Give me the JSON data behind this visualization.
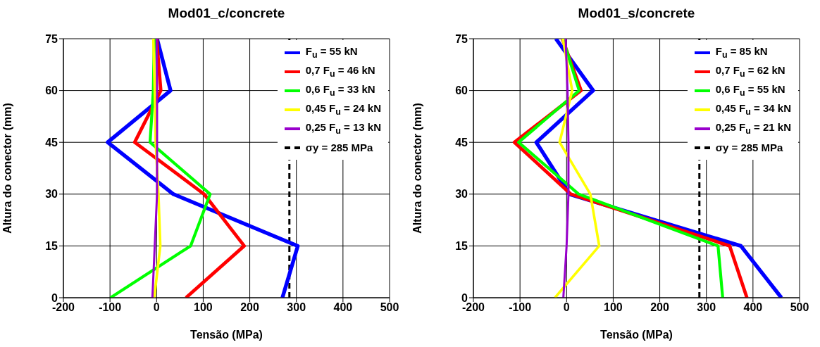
{
  "chart_data": [
    {
      "type": "line",
      "title": "Mod01_c/concrete",
      "xlabel": "Tensão (MPa)",
      "ylabel": "Altura do conector (mm)",
      "xlim": [
        -200,
        500
      ],
      "xticks": [
        -200,
        -100,
        0,
        100,
        200,
        300,
        400,
        500
      ],
      "ylim": [
        0,
        75
      ],
      "yticks": [
        0,
        15,
        30,
        45,
        60,
        75
      ],
      "grid": true,
      "legend": "top right",
      "marker": "none",
      "line_style": "solid",
      "series": [
        {
          "name": "F$_{u}$ = 55 kN",
          "color": "#0000ff",
          "x": [
            270,
            303,
            36,
            -105,
            30,
            1
          ],
          "values": [
            0,
            15,
            30,
            45,
            60,
            75
          ]
        },
        {
          "name": "0,7 F$_{u}$ = 46 kN",
          "color": "#ff0000",
          "x": [
            63,
            188,
            102,
            -47,
            9,
            0
          ],
          "values": [
            0,
            15,
            30,
            45,
            60,
            75
          ]
        },
        {
          "name": "0,6 F$_{u}$ = 33 kN",
          "color": "#00ff00",
          "x": [
            -99,
            73,
            115,
            -14,
            -7,
            -5
          ],
          "values": [
            0,
            15,
            30,
            45,
            60,
            75
          ]
        },
        {
          "name": "0,45 F$_{u}$ = 24 kN",
          "color": "#ffff00",
          "x": [
            -5,
            8,
            4,
            -2,
            -4,
            -7
          ],
          "values": [
            0,
            15,
            30,
            45,
            60,
            75
          ]
        },
        {
          "name": "0,25 F$_{u}$ = 13 kN",
          "color": "#9900cc",
          "x": [
            -9,
            -4,
            1,
            1,
            1,
            0
          ],
          "values": [
            0,
            15,
            30,
            45,
            60,
            75
          ]
        }
      ],
      "ref_lines": [
        {
          "axis": "x",
          "value": 285,
          "label": "σy = 285 MPa",
          "color": "#000000",
          "line_style": "dashed"
        }
      ]
    },
    {
      "type": "line",
      "title": "Mod01_s/concrete",
      "xlabel": "Tensão (MPa)",
      "ylabel": "Altura do conector (mm)",
      "xlim": [
        -200,
        500
      ],
      "xticks": [
        -200,
        -100,
        0,
        100,
        200,
        300,
        400,
        500
      ],
      "ylim": [
        0,
        75
      ],
      "yticks": [
        0,
        15,
        30,
        45,
        60,
        75
      ],
      "grid": true,
      "legend": "top right",
      "marker": "none",
      "line_style": "solid",
      "series": [
        {
          "name": "F$_{u}$ = 85 kN",
          "color": "#0000ff",
          "x": [
            461,
            374,
            6,
            -65,
            57,
            -23
          ],
          "values": [
            0,
            15,
            30,
            45,
            60,
            75
          ]
        },
        {
          "name": "0,7 F$_{u}$ = 62 kN",
          "color": "#ff0000",
          "x": [
            387,
            350,
            9,
            -112,
            31,
            -9
          ],
          "values": [
            0,
            15,
            30,
            45,
            60,
            75
          ]
        },
        {
          "name": "0,6 F$_{u}$ = 55 kN",
          "color": "#00ff00",
          "x": [
            335,
            325,
            26,
            -103,
            27,
            -8
          ],
          "values": [
            0,
            15,
            30,
            45,
            60,
            75
          ]
        },
        {
          "name": "0,45 F$_{u}$ = 34 kN",
          "color": "#ffff00",
          "x": [
            -25,
            70,
            51,
            -15,
            12,
            -8
          ],
          "values": [
            0,
            15,
            30,
            45,
            60,
            75
          ]
        },
        {
          "name": "0,25 F$_{u}$ = 21 kN",
          "color": "#9900cc",
          "x": [
            -7,
            0,
            4,
            4,
            2,
            -2
          ],
          "values": [
            0,
            15,
            30,
            45,
            60,
            75
          ]
        }
      ],
      "ref_lines": [
        {
          "axis": "x",
          "value": 285,
          "label": "σy = 285 MPa",
          "color": "#000000",
          "line_style": "dashed"
        }
      ]
    }
  ]
}
